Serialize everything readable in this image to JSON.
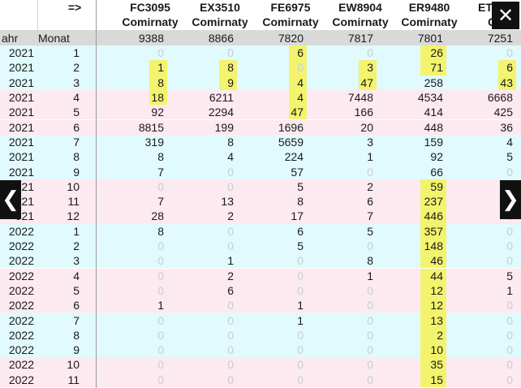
{
  "header": {
    "arrow": "=>",
    "codes": [
      "FC3095",
      "EX3510",
      "FE6975",
      "EW8904",
      "ER9480",
      "ET"
    ],
    "vaccines": [
      "Comirnaty",
      "Comirnaty",
      "Comirnaty",
      "Comirnaty",
      "Comirnaty",
      "Comi"
    ],
    "col_year": "ahr",
    "col_month": "Monat",
    "totals": [
      "9388",
      "8866",
      "7820",
      "7817",
      "7801",
      "7251"
    ]
  },
  "rows": [
    {
      "year": "2021",
      "month": "1",
      "tint": "blue",
      "values": [
        "0",
        "0",
        "6",
        "0",
        "26",
        "0"
      ],
      "hl": [
        false,
        false,
        true,
        false,
        true,
        false
      ]
    },
    {
      "year": "2021",
      "month": "2",
      "tint": "blue",
      "values": [
        "1",
        "8",
        "0",
        "3",
        "71",
        "6"
      ],
      "hl": [
        true,
        true,
        true,
        true,
        true,
        true
      ]
    },
    {
      "year": "2021",
      "month": "3",
      "tint": "blue",
      "values": [
        "8",
        "9",
        "4",
        "47",
        "258",
        "43"
      ],
      "hl": [
        true,
        true,
        true,
        true,
        false,
        true
      ]
    },
    {
      "year": "2021",
      "month": "4",
      "tint": "pink",
      "values": [
        "18",
        "6211",
        "4",
        "7448",
        "4534",
        "6668"
      ],
      "hl": [
        true,
        false,
        true,
        false,
        false,
        false
      ]
    },
    {
      "year": "2021",
      "month": "5",
      "tint": "pink",
      "values": [
        "92",
        "2294",
        "47",
        "166",
        "414",
        "425"
      ],
      "hl": [
        false,
        false,
        true,
        false,
        false,
        false
      ]
    },
    {
      "year": "2021",
      "month": "6",
      "tint": "pink",
      "values": [
        "8815",
        "199",
        "1696",
        "20",
        "448",
        "36"
      ],
      "hl": [
        false,
        false,
        false,
        false,
        false,
        false
      ]
    },
    {
      "year": "2021",
      "month": "7",
      "tint": "blue",
      "values": [
        "319",
        "8",
        "5659",
        "3",
        "159",
        "4"
      ],
      "hl": [
        false,
        false,
        false,
        false,
        false,
        false
      ]
    },
    {
      "year": "2021",
      "month": "8",
      "tint": "blue",
      "values": [
        "8",
        "4",
        "224",
        "1",
        "92",
        "5"
      ],
      "hl": [
        false,
        false,
        false,
        false,
        false,
        false
      ]
    },
    {
      "year": "2021",
      "month": "9",
      "tint": "blue",
      "values": [
        "7",
        "0",
        "57",
        "0",
        "66",
        "0"
      ],
      "hl": [
        false,
        false,
        false,
        false,
        false,
        false
      ]
    },
    {
      "year": "021",
      "month": "10",
      "tint": "pink",
      "values": [
        "0",
        "0",
        "5",
        "2",
        "59",
        "0"
      ],
      "hl": [
        false,
        false,
        false,
        false,
        true,
        false
      ]
    },
    {
      "year": "021",
      "month": "11",
      "tint": "pink",
      "values": [
        "7",
        "13",
        "8",
        "6",
        "237",
        "0"
      ],
      "hl": [
        false,
        false,
        false,
        false,
        true,
        false
      ]
    },
    {
      "year": "021",
      "month": "12",
      "tint": "pink",
      "values": [
        "28",
        "2",
        "17",
        "7",
        "446",
        "0"
      ],
      "hl": [
        false,
        false,
        false,
        false,
        true,
        false
      ]
    },
    {
      "year": "2022",
      "month": "1",
      "tint": "blue",
      "values": [
        "8",
        "0",
        "6",
        "5",
        "357",
        "0"
      ],
      "hl": [
        false,
        false,
        false,
        false,
        true,
        false
      ]
    },
    {
      "year": "2022",
      "month": "2",
      "tint": "blue",
      "values": [
        "0",
        "0",
        "5",
        "0",
        "148",
        "0"
      ],
      "hl": [
        false,
        false,
        false,
        false,
        true,
        false
      ]
    },
    {
      "year": "2022",
      "month": "3",
      "tint": "blue",
      "values": [
        "0",
        "1",
        "0",
        "8",
        "46",
        "0"
      ],
      "hl": [
        false,
        false,
        false,
        false,
        true,
        false
      ]
    },
    {
      "year": "2022",
      "month": "4",
      "tint": "pink",
      "values": [
        "0",
        "2",
        "0",
        "1",
        "44",
        "5"
      ],
      "hl": [
        false,
        false,
        false,
        false,
        true,
        false
      ]
    },
    {
      "year": "2022",
      "month": "5",
      "tint": "pink",
      "values": [
        "0",
        "6",
        "0",
        "0",
        "12",
        "1"
      ],
      "hl": [
        false,
        false,
        false,
        false,
        true,
        false
      ]
    },
    {
      "year": "2022",
      "month": "6",
      "tint": "pink",
      "values": [
        "1",
        "0",
        "1",
        "0",
        "12",
        "0"
      ],
      "hl": [
        false,
        false,
        false,
        false,
        true,
        false
      ]
    },
    {
      "year": "2022",
      "month": "7",
      "tint": "blue",
      "values": [
        "0",
        "0",
        "1",
        "0",
        "13",
        "0"
      ],
      "hl": [
        false,
        false,
        false,
        false,
        true,
        false
      ]
    },
    {
      "year": "2022",
      "month": "8",
      "tint": "blue",
      "values": [
        "0",
        "0",
        "0",
        "0",
        "2",
        "0"
      ],
      "hl": [
        false,
        false,
        false,
        false,
        true,
        false
      ]
    },
    {
      "year": "2022",
      "month": "9",
      "tint": "blue",
      "values": [
        "0",
        "0",
        "0",
        "0",
        "10",
        "0"
      ],
      "hl": [
        false,
        false,
        false,
        false,
        true,
        false
      ]
    },
    {
      "year": "2022",
      "month": "10",
      "tint": "pink",
      "values": [
        "0",
        "0",
        "0",
        "0",
        "35",
        "0"
      ],
      "hl": [
        false,
        false,
        false,
        false,
        true,
        false
      ]
    },
    {
      "year": "2022",
      "month": "11",
      "tint": "pink",
      "values": [
        "0",
        "0",
        "0",
        "0",
        "15",
        "0"
      ],
      "hl": [
        false,
        false,
        false,
        false,
        true,
        false
      ]
    }
  ],
  "colors": {
    "blue": "#e0fafd",
    "pink": "#fde9f0",
    "header_gray": "#d9d9d9",
    "highlight": "#f3f36e"
  },
  "controls": {
    "prev": "❮",
    "next": "❯",
    "close": "✕"
  }
}
